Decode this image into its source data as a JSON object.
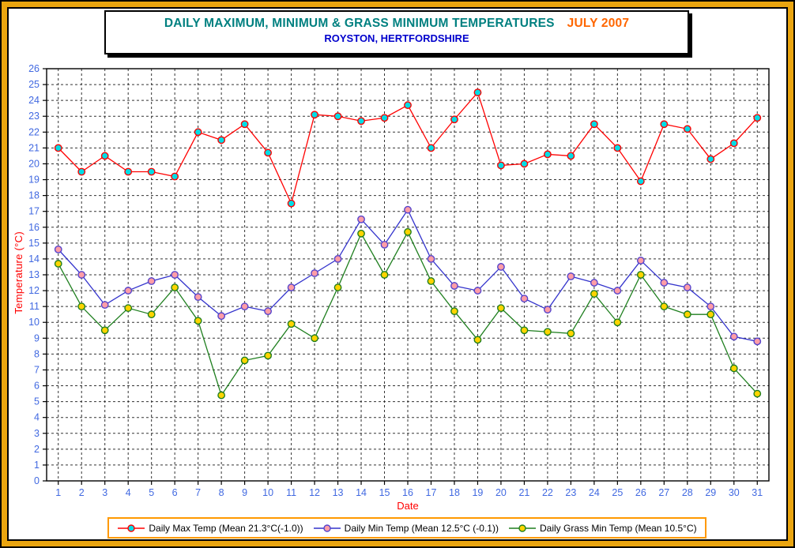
{
  "title_box": {
    "title_main": "DAILY MAXIMUM, MINIMUM & GRASS MINIMUM TEMPERATURES",
    "title_period": "JULY 2007",
    "subtitle": "ROYSTON, HERTFORDSHIRE",
    "title_color": "#008080",
    "period_color": "#FF6600",
    "subtitle_color": "#0000CC"
  },
  "frame": {
    "border_color": "#EAA510"
  },
  "legend": {
    "border_color": "#FF9900"
  },
  "chart_data": {
    "type": "line",
    "x": [
      1,
      2,
      3,
      4,
      5,
      6,
      7,
      8,
      9,
      10,
      11,
      12,
      13,
      14,
      15,
      16,
      17,
      18,
      19,
      20,
      21,
      22,
      23,
      24,
      25,
      26,
      27,
      28,
      29,
      30,
      31
    ],
    "xlabel": "Date",
    "ylabel": "Temperature (°C)",
    "ylim": [
      0,
      26
    ],
    "ytick_step": 1,
    "grid": true,
    "legend_position": "bottom",
    "axis_label_color": "#4169E1",
    "axis_title_color": "#FF0000",
    "gridline_color": "#333333",
    "series": [
      {
        "name": "Daily Max Temp (Mean 21.3°C(-1.0))",
        "line_color": "#FF0000",
        "marker_fill": "#00DDE6",
        "marker_edge": "#FF0000",
        "values": [
          21.0,
          19.5,
          20.5,
          19.5,
          19.5,
          19.2,
          22.0,
          21.5,
          22.5,
          20.7,
          17.5,
          23.1,
          23.0,
          22.7,
          22.9,
          23.7,
          21.0,
          22.8,
          24.5,
          19.9,
          20.0,
          20.6,
          20.5,
          22.5,
          21.0,
          18.9,
          22.5,
          22.2,
          20.3,
          21.3,
          22.9
        ]
      },
      {
        "name": "Daily Min Temp (Mean 12.5°C (-0.1))",
        "line_color": "#3333CC",
        "marker_fill": "#FF9DA6",
        "marker_edge": "#5544CC",
        "values": [
          14.6,
          13.0,
          11.1,
          12.0,
          12.6,
          13.0,
          11.6,
          10.4,
          11.0,
          10.7,
          12.2,
          13.1,
          14.0,
          16.5,
          14.9,
          17.1,
          14.0,
          12.3,
          12.0,
          13.5,
          11.5,
          10.8,
          12.9,
          12.5,
          12.0,
          13.9,
          12.5,
          12.2,
          11.0,
          9.1,
          8.8
        ]
      },
      {
        "name": "Daily Grass Min Temp (Mean 10.5°C)",
        "line_color": "#1F7F1F",
        "marker_fill": "#FFD400",
        "marker_edge": "#1F7F1F",
        "values": [
          13.7,
          11.0,
          9.5,
          10.9,
          10.5,
          12.2,
          10.1,
          5.4,
          7.6,
          7.9,
          9.9,
          9.0,
          12.2,
          15.6,
          13.0,
          15.7,
          12.6,
          10.7,
          8.9,
          10.9,
          9.5,
          9.4,
          9.3,
          11.8,
          10.0,
          13.0,
          11.0,
          10.5,
          10.5,
          7.1,
          5.5
        ]
      }
    ]
  }
}
